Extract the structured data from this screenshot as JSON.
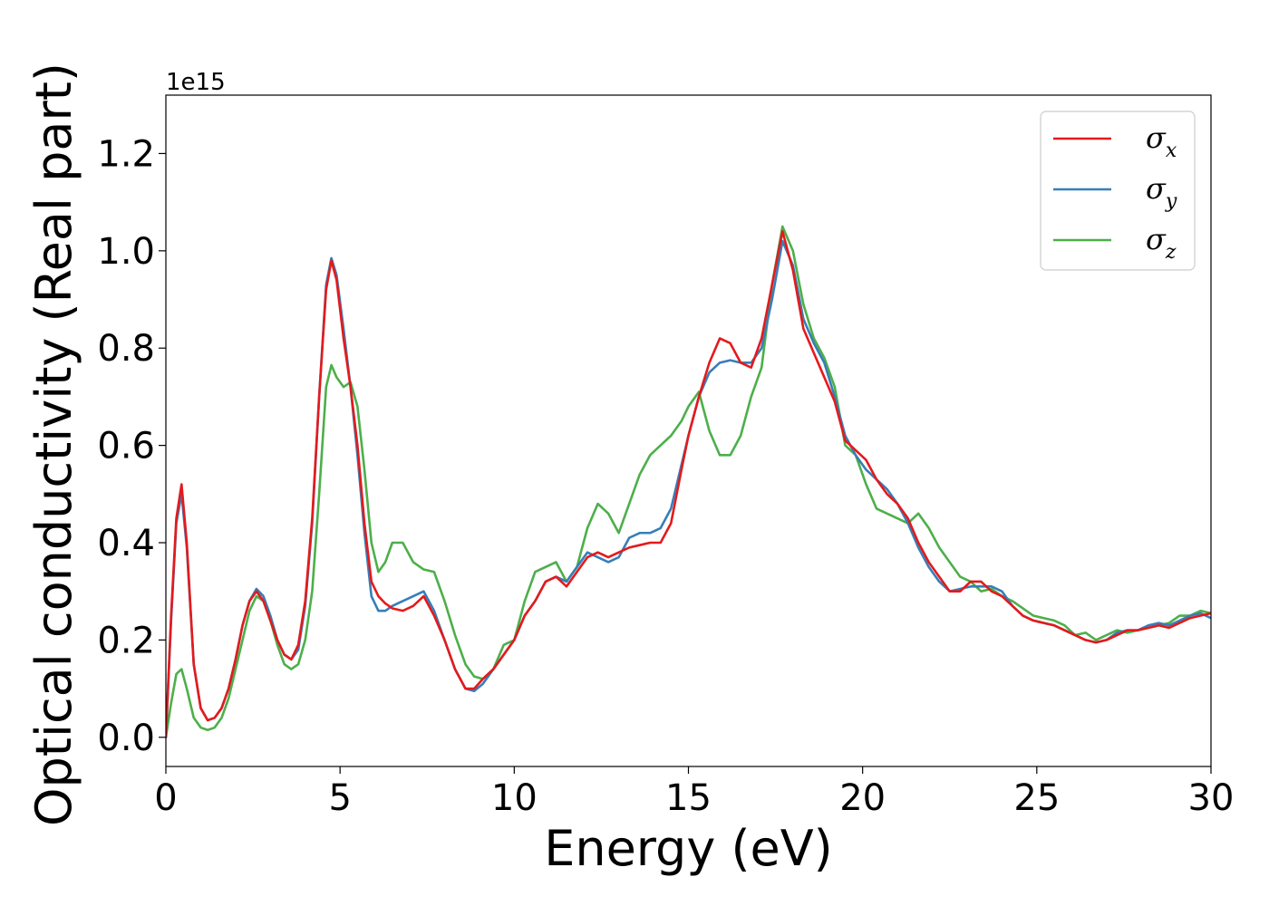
{
  "chart_data": {
    "type": "line",
    "title": "",
    "xlabel": "Energy (eV)",
    "ylabel": "Optical conductivity (Real part)",
    "y_offset_label": "1e15",
    "xlim": [
      0,
      30
    ],
    "ylim": [
      -0.06,
      1.32
    ],
    "x_ticks": [
      0,
      5,
      10,
      15,
      20,
      25,
      30
    ],
    "x_tick_labels": [
      "0",
      "5",
      "10",
      "15",
      "20",
      "25",
      "30"
    ],
    "y_ticks": [
      0.0,
      0.2,
      0.4,
      0.6,
      0.8,
      1.0,
      1.2
    ],
    "y_tick_labels": [
      "0.0",
      "0.2",
      "0.4",
      "0.6",
      "0.8",
      "1.0",
      "1.2"
    ],
    "grid": false,
    "legend_position": "top-right",
    "series": [
      {
        "name": "σx",
        "symbol": "σ",
        "subscript": "x",
        "color": "#e41a1c",
        "x": [
          0,
          0.15,
          0.3,
          0.45,
          0.6,
          0.8,
          1.0,
          1.2,
          1.4,
          1.6,
          1.8,
          2.0,
          2.2,
          2.4,
          2.6,
          2.8,
          3.0,
          3.2,
          3.4,
          3.6,
          3.8,
          4.0,
          4.2,
          4.4,
          4.6,
          4.75,
          4.9,
          5.1,
          5.3,
          5.5,
          5.7,
          5.9,
          6.1,
          6.3,
          6.5,
          6.8,
          7.1,
          7.4,
          7.7,
          8.0,
          8.3,
          8.6,
          8.85,
          9.1,
          9.4,
          9.7,
          10.0,
          10.3,
          10.6,
          10.9,
          11.2,
          11.5,
          11.8,
          12.1,
          12.4,
          12.7,
          13.0,
          13.3,
          13.6,
          13.9,
          14.2,
          14.5,
          14.8,
          15.0,
          15.3,
          15.6,
          15.9,
          16.2,
          16.5,
          16.8,
          17.1,
          17.4,
          17.7,
          18.0,
          18.3,
          18.6,
          18.9,
          19.2,
          19.5,
          19.8,
          20.1,
          20.4,
          20.7,
          21.0,
          21.3,
          21.6,
          21.9,
          22.2,
          22.5,
          22.8,
          23.1,
          23.4,
          23.7,
          24.0,
          24.3,
          24.6,
          24.9,
          25.2,
          25.5,
          25.8,
          26.1,
          26.4,
          26.7,
          27.0,
          27.3,
          27.6,
          27.9,
          28.2,
          28.5,
          28.8,
          29.1,
          29.4,
          29.7,
          30.0
        ],
        "y": [
          0.0,
          0.25,
          0.45,
          0.52,
          0.4,
          0.15,
          0.06,
          0.035,
          0.04,
          0.06,
          0.1,
          0.16,
          0.23,
          0.28,
          0.3,
          0.28,
          0.24,
          0.2,
          0.17,
          0.16,
          0.19,
          0.28,
          0.45,
          0.7,
          0.92,
          0.98,
          0.94,
          0.82,
          0.72,
          0.6,
          0.44,
          0.32,
          0.29,
          0.275,
          0.265,
          0.26,
          0.27,
          0.29,
          0.25,
          0.2,
          0.14,
          0.1,
          0.1,
          0.12,
          0.14,
          0.17,
          0.2,
          0.25,
          0.28,
          0.32,
          0.33,
          0.31,
          0.34,
          0.37,
          0.38,
          0.37,
          0.38,
          0.39,
          0.395,
          0.4,
          0.4,
          0.44,
          0.55,
          0.62,
          0.7,
          0.77,
          0.82,
          0.81,
          0.77,
          0.76,
          0.82,
          0.93,
          1.04,
          0.96,
          0.84,
          0.79,
          0.74,
          0.69,
          0.61,
          0.59,
          0.57,
          0.53,
          0.5,
          0.48,
          0.45,
          0.4,
          0.36,
          0.33,
          0.3,
          0.3,
          0.32,
          0.32,
          0.3,
          0.29,
          0.27,
          0.25,
          0.24,
          0.235,
          0.23,
          0.22,
          0.21,
          0.2,
          0.195,
          0.2,
          0.21,
          0.22,
          0.22,
          0.225,
          0.23,
          0.225,
          0.235,
          0.245,
          0.25,
          0.255
        ]
      },
      {
        "name": "σy",
        "symbol": "σ",
        "subscript": "y",
        "color": "#377eb8",
        "x": [
          0,
          0.15,
          0.3,
          0.45,
          0.6,
          0.8,
          1.0,
          1.2,
          1.4,
          1.6,
          1.8,
          2.0,
          2.2,
          2.4,
          2.6,
          2.8,
          3.0,
          3.2,
          3.4,
          3.6,
          3.8,
          4.0,
          4.2,
          4.4,
          4.6,
          4.75,
          4.9,
          5.1,
          5.3,
          5.5,
          5.7,
          5.9,
          6.1,
          6.3,
          6.5,
          6.8,
          7.1,
          7.4,
          7.7,
          8.0,
          8.3,
          8.6,
          8.85,
          9.1,
          9.4,
          9.7,
          10.0,
          10.3,
          10.6,
          10.9,
          11.2,
          11.5,
          11.8,
          12.1,
          12.4,
          12.7,
          13.0,
          13.3,
          13.6,
          13.9,
          14.2,
          14.5,
          14.8,
          15.0,
          15.3,
          15.6,
          15.9,
          16.2,
          16.5,
          16.8,
          17.1,
          17.4,
          17.7,
          18.0,
          18.3,
          18.6,
          18.9,
          19.2,
          19.5,
          19.8,
          20.1,
          20.4,
          20.7,
          21.0,
          21.3,
          21.6,
          21.9,
          22.2,
          22.5,
          22.8,
          23.1,
          23.4,
          23.7,
          24.0,
          24.3,
          24.6,
          24.9,
          25.2,
          25.5,
          25.8,
          26.1,
          26.4,
          26.7,
          27.0,
          27.3,
          27.6,
          27.9,
          28.2,
          28.5,
          28.8,
          29.1,
          29.4,
          29.7,
          30.0
        ],
        "y": [
          0.0,
          0.24,
          0.44,
          0.5,
          0.39,
          0.15,
          0.06,
          0.035,
          0.04,
          0.06,
          0.1,
          0.16,
          0.23,
          0.28,
          0.305,
          0.29,
          0.25,
          0.2,
          0.17,
          0.16,
          0.18,
          0.27,
          0.44,
          0.7,
          0.93,
          0.985,
          0.95,
          0.84,
          0.72,
          0.58,
          0.42,
          0.29,
          0.26,
          0.26,
          0.27,
          0.28,
          0.29,
          0.3,
          0.26,
          0.2,
          0.14,
          0.1,
          0.095,
          0.11,
          0.14,
          0.17,
          0.2,
          0.25,
          0.28,
          0.32,
          0.33,
          0.32,
          0.35,
          0.38,
          0.37,
          0.36,
          0.37,
          0.41,
          0.42,
          0.42,
          0.43,
          0.47,
          0.56,
          0.62,
          0.7,
          0.75,
          0.77,
          0.775,
          0.77,
          0.77,
          0.8,
          0.9,
          1.02,
          0.97,
          0.86,
          0.81,
          0.77,
          0.7,
          0.62,
          0.58,
          0.55,
          0.53,
          0.51,
          0.48,
          0.44,
          0.39,
          0.35,
          0.32,
          0.3,
          0.305,
          0.31,
          0.31,
          0.31,
          0.3,
          0.27,
          0.25,
          0.24,
          0.235,
          0.23,
          0.22,
          0.21,
          0.2,
          0.195,
          0.2,
          0.215,
          0.22,
          0.22,
          0.23,
          0.235,
          0.23,
          0.24,
          0.25,
          0.255,
          0.245
        ]
      },
      {
        "name": "σz",
        "symbol": "σ",
        "subscript": "z",
        "color": "#4daf4a",
        "x": [
          0,
          0.15,
          0.3,
          0.45,
          0.6,
          0.8,
          1.0,
          1.2,
          1.4,
          1.6,
          1.8,
          2.0,
          2.2,
          2.4,
          2.6,
          2.8,
          3.0,
          3.2,
          3.4,
          3.6,
          3.8,
          4.0,
          4.2,
          4.4,
          4.6,
          4.75,
          4.9,
          5.1,
          5.3,
          5.5,
          5.7,
          5.9,
          6.1,
          6.3,
          6.5,
          6.8,
          7.1,
          7.4,
          7.7,
          8.0,
          8.3,
          8.6,
          8.85,
          9.1,
          9.4,
          9.7,
          10.0,
          10.3,
          10.6,
          10.9,
          11.2,
          11.5,
          11.8,
          12.1,
          12.4,
          12.7,
          13.0,
          13.3,
          13.6,
          13.9,
          14.2,
          14.5,
          14.8,
          15.0,
          15.3,
          15.6,
          15.9,
          16.2,
          16.5,
          16.8,
          17.1,
          17.4,
          17.7,
          18.0,
          18.3,
          18.6,
          18.9,
          19.2,
          19.5,
          19.8,
          20.1,
          20.4,
          20.7,
          21.0,
          21.3,
          21.6,
          21.9,
          22.2,
          22.5,
          22.8,
          23.1,
          23.4,
          23.7,
          24.0,
          24.3,
          24.6,
          24.9,
          25.2,
          25.5,
          25.8,
          26.1,
          26.4,
          26.7,
          27.0,
          27.3,
          27.6,
          27.9,
          28.2,
          28.5,
          28.8,
          29.1,
          29.4,
          29.7,
          30.0
        ],
        "y": [
          0.0,
          0.07,
          0.13,
          0.14,
          0.1,
          0.04,
          0.02,
          0.015,
          0.02,
          0.04,
          0.08,
          0.14,
          0.2,
          0.26,
          0.29,
          0.28,
          0.24,
          0.19,
          0.15,
          0.14,
          0.15,
          0.2,
          0.3,
          0.5,
          0.72,
          0.765,
          0.74,
          0.72,
          0.73,
          0.68,
          0.55,
          0.4,
          0.34,
          0.36,
          0.4,
          0.4,
          0.36,
          0.345,
          0.34,
          0.28,
          0.21,
          0.15,
          0.125,
          0.12,
          0.14,
          0.19,
          0.2,
          0.28,
          0.34,
          0.35,
          0.36,
          0.32,
          0.35,
          0.43,
          0.48,
          0.46,
          0.42,
          0.48,
          0.54,
          0.58,
          0.6,
          0.62,
          0.65,
          0.68,
          0.71,
          0.63,
          0.58,
          0.58,
          0.62,
          0.7,
          0.76,
          0.93,
          1.05,
          1.0,
          0.89,
          0.82,
          0.78,
          0.72,
          0.6,
          0.58,
          0.52,
          0.47,
          0.46,
          0.45,
          0.44,
          0.46,
          0.43,
          0.39,
          0.36,
          0.33,
          0.32,
          0.3,
          0.305,
          0.29,
          0.28,
          0.265,
          0.25,
          0.245,
          0.24,
          0.23,
          0.21,
          0.215,
          0.2,
          0.21,
          0.22,
          0.215,
          0.22,
          0.225,
          0.23,
          0.235,
          0.25,
          0.25,
          0.26,
          0.255
        ]
      }
    ]
  }
}
